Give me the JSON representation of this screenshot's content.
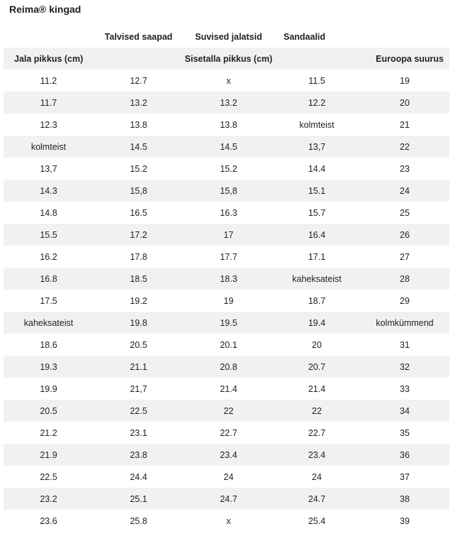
{
  "title": "Reima® kingad",
  "group_headers": [
    "",
    "Talvised saapad",
    "Suvised jalatsid",
    "Sandaalid",
    ""
  ],
  "column_headers": {
    "foot_length": "Jala pikkus (cm)",
    "insole_length": "Sisetalla pikkus (cm)",
    "eu_size": "Euroopa suurus"
  },
  "rows": [
    [
      "11.2",
      "12.7",
      "x",
      "11.5",
      "19"
    ],
    [
      "11.7",
      "13.2",
      "13.2",
      "12.2",
      "20"
    ],
    [
      "12.3",
      "13.8",
      "13.8",
      "kolmteist",
      "21"
    ],
    [
      "kolmteist",
      "14.5",
      "14.5",
      "13,7",
      "22"
    ],
    [
      "13,7",
      "15.2",
      "15.2",
      "14.4",
      "23"
    ],
    [
      "14.3",
      "15,8",
      "15,8",
      "15.1",
      "24"
    ],
    [
      "14.8",
      "16.5",
      "16.3",
      "15.7",
      "25"
    ],
    [
      "15.5",
      "17.2",
      "17",
      "16.4",
      "26"
    ],
    [
      "16.2",
      "17.8",
      "17.7",
      "17.1",
      "27"
    ],
    [
      "16.8",
      "18.5",
      "18.3",
      "kaheksateist",
      "28"
    ],
    [
      "17.5",
      "19.2",
      "19",
      "18.7",
      "29"
    ],
    [
      "kaheksateist",
      "19.8",
      "19.5",
      "19.4",
      "kolmkümmend"
    ],
    [
      "18.6",
      "20.5",
      "20.1",
      "20",
      "31"
    ],
    [
      "19.3",
      "21.1",
      "20.8",
      "20.7",
      "32"
    ],
    [
      "19.9",
      "21,7",
      "21.4",
      "21.4",
      "33"
    ],
    [
      "20.5",
      "22.5",
      "22",
      "22",
      "34"
    ],
    [
      "21.2",
      "23.1",
      "22.7",
      "22.7",
      "35"
    ],
    [
      "21.9",
      "23.8",
      "23.4",
      "23.4",
      "36"
    ],
    [
      "22.5",
      "24.4",
      "24",
      "24",
      "37"
    ],
    [
      "23.2",
      "25.1",
      "24.7",
      "24.7",
      "38"
    ],
    [
      "23.6",
      "25.8",
      "x",
      "25.4",
      "39"
    ]
  ]
}
